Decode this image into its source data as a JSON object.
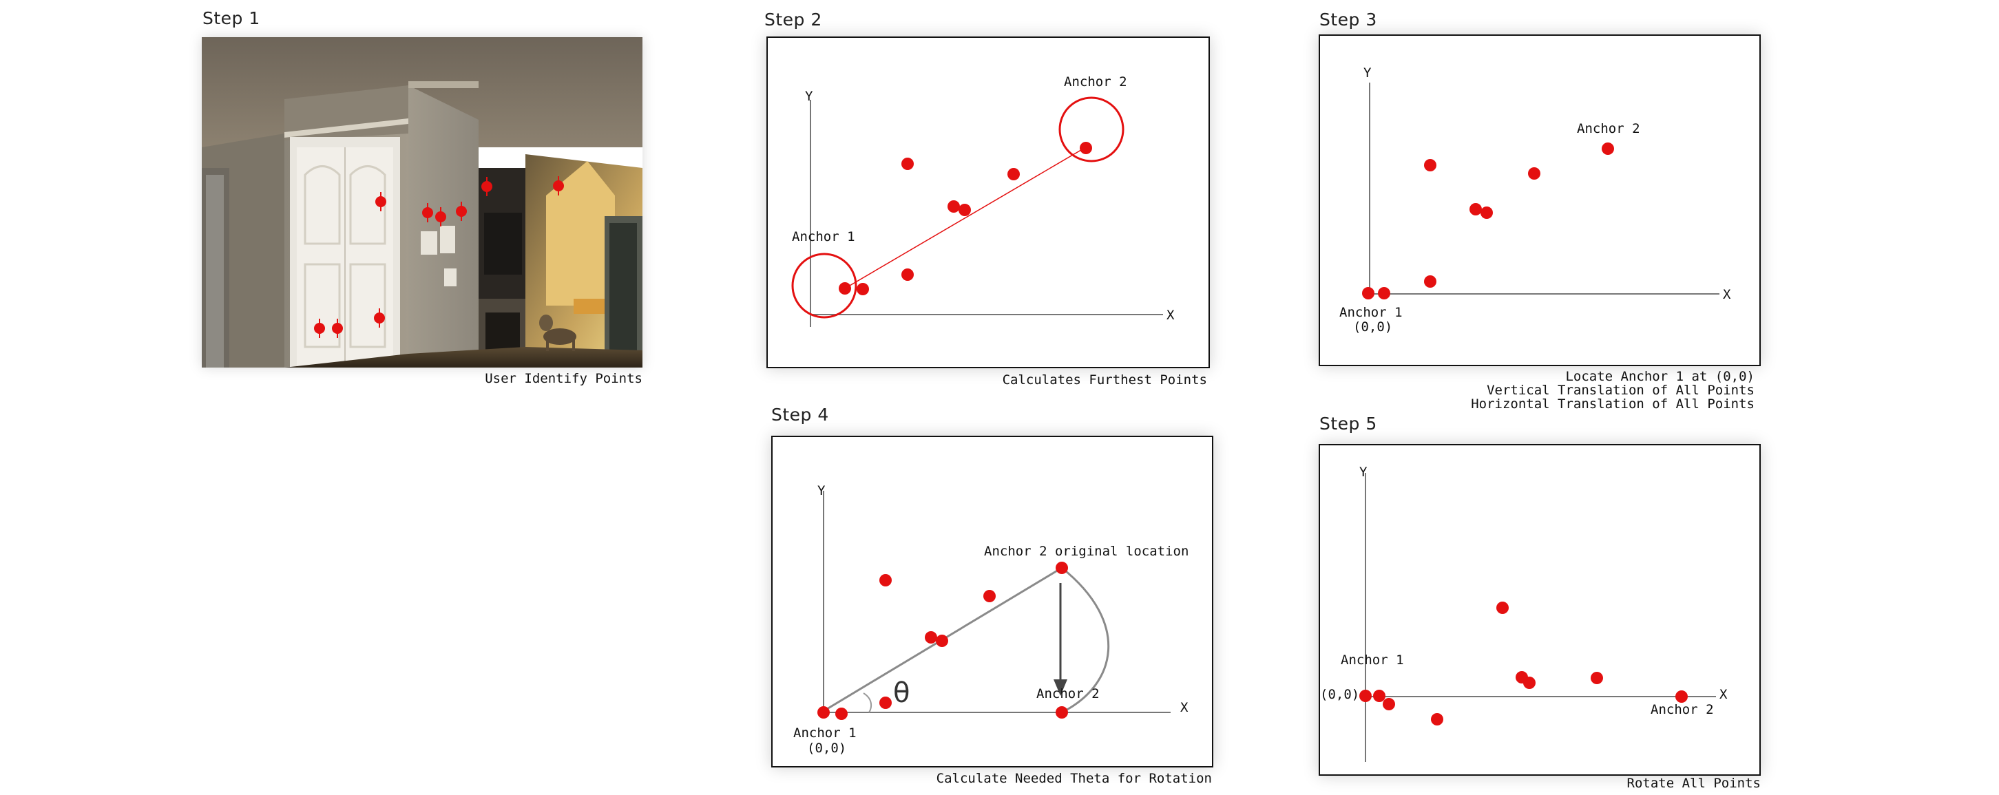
{
  "step1": {
    "title": "Step 1",
    "caption": "User Identify Points"
  },
  "step2": {
    "title": "Step 2",
    "caption": "Calculates Furthest Points",
    "y_label": "Y",
    "x_label": "X",
    "anchor1_label": "Anchor 1",
    "anchor2_label": "Anchor 2"
  },
  "step3": {
    "title": "Step 3",
    "caption_line1": "Locate Anchor 1 at (0,0)",
    "caption_line2": "Vertical Translation of All Points",
    "caption_line3": "Horizontal Translation of All Points",
    "y_label": "Y",
    "x_label": "X",
    "anchor1_label": "Anchor 1",
    "origin_label": "(0,0)",
    "anchor2_label": "Anchor 2"
  },
  "step4": {
    "title": "Step 4",
    "caption": "Calculate Needed Theta for Rotation",
    "y_label": "Y",
    "x_label": "X",
    "anchor1_label": "Anchor 1",
    "origin_label": "(0,0)",
    "anchor2_original_label": "Anchor 2 original location",
    "anchor2_label": "Anchor 2",
    "theta_label": "θ"
  },
  "step5": {
    "title": "Step 5",
    "caption": "Rotate All Points",
    "y_label": "Y",
    "x_label": "X",
    "anchor1_label": "Anchor 1",
    "origin_label": "(0,0)",
    "anchor2_label": "Anchor 2"
  },
  "colors": {
    "point": "#e41010",
    "axis": "#777777",
    "connector": "#888888",
    "frame_border": "#111111"
  }
}
